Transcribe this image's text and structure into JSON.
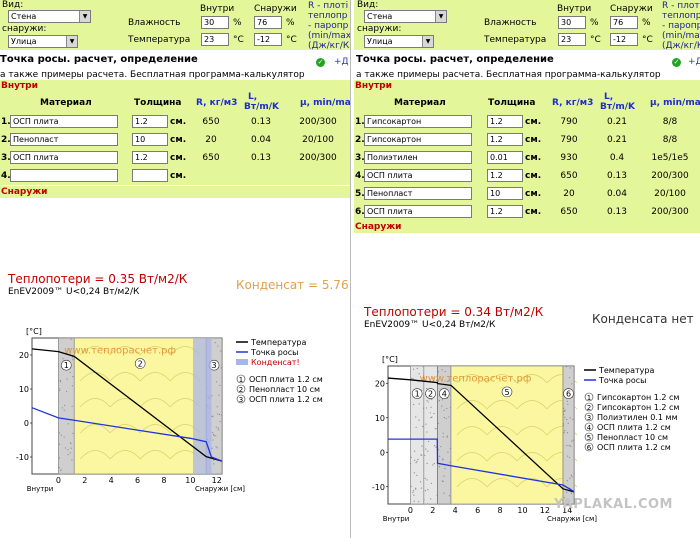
{
  "left": {
    "form": {
      "vid_label": "Вид:",
      "vid_value": "Стена",
      "outside_label": "снаружи:",
      "outside_value": "Улица",
      "inside_label": "Внутри",
      "outside_col_label": "Снаружи",
      "humidity_label": "Влажность",
      "humidity_in": "30",
      "humidity_out": "76",
      "percent": "%",
      "temp_label": "Температура",
      "temp_in": "23",
      "temp_out": "-12",
      "celsius": "°C",
      "r_note": [
        "R - плоті",
        "теплопр",
        "- паропр",
        "(min/max",
        "(Дж/кг/К"
      ]
    },
    "headline": "Точка росы. расчет, определение",
    "plus": "+Д",
    "subline": "а также примеры расчета. Бесплатная программа-калькулятор",
    "inside_bar": "Внутри",
    "outside_bar": "Снаружи",
    "table_header": {
      "material": "Материал",
      "thickness": "Толщина",
      "r": "R, кг/м3",
      "l": "L,",
      "l2": "Вт/m/K",
      "mu": "μ, min/max"
    },
    "rows": [
      {
        "num": "1.",
        "material": "ОСП плита",
        "thickness": "1.2",
        "unit": "см.",
        "r": "650",
        "l": "0.13",
        "mu": "200/300"
      },
      {
        "num": "2.",
        "material": "Пенопласт",
        "thickness": "10",
        "unit": "см.",
        "r": "20",
        "l": "0.04",
        "mu": "20/100"
      },
      {
        "num": "3.",
        "material": "ОСП плита",
        "thickness": "1.2",
        "unit": "см.",
        "r": "650",
        "l": "0.13",
        "mu": "200/300"
      },
      {
        "num": "4.",
        "material": "",
        "thickness": "",
        "unit": "см.",
        "r": "",
        "l": "",
        "mu": ""
      }
    ],
    "heat_loss": "Теплопотери = 0.35 Вт/м2/К",
    "enev": "EnEV2009™ U<0,24 Вт/м2/К",
    "condensate": "Конденсат = 5.76"
  },
  "right": {
    "form": {
      "vid_label": "Вид:",
      "vid_value": "Стена",
      "outside_label": "снаружи:",
      "outside_value": "Улица",
      "inside_label": "Внутри",
      "outside_col_label": "Снаружи",
      "humidity_label": "Влажность",
      "humidity_in": "30",
      "humidity_out": "76",
      "percent": "%",
      "temp_label": "Температура",
      "temp_in": "23",
      "temp_out": "-12",
      "celsius": "°C",
      "r_note": [
        "R - плотн",
        "теплопр",
        "- паропр",
        "(min/max",
        "(Дж/кг/К"
      ]
    },
    "headline": "Точка росы. расчет, определение",
    "plus": "+Д",
    "subline": "а также примеры расчета. Бесплатная программа-калькулятор",
    "inside_bar": "Внутри",
    "outside_bar": "Снаружи",
    "table_header": {
      "material": "Материал",
      "thickness": "Толщина",
      "r": "R, кг/м3",
      "l": "L,",
      "l2": "Вт/m/K",
      "mu": "μ, min/max"
    },
    "rows": [
      {
        "num": "1.",
        "material": "Гипсокартон",
        "thickness": "1.2",
        "unit": "см.",
        "r": "790",
        "l": "0.21",
        "mu": "8/8"
      },
      {
        "num": "2.",
        "material": "Гипсокартон",
        "thickness": "1.2",
        "unit": "см.",
        "r": "790",
        "l": "0.21",
        "mu": "8/8"
      },
      {
        "num": "3.",
        "material": "Полиэтилен",
        "thickness": "0.01",
        "unit": "см.",
        "r": "930",
        "l": "0.4",
        "mu": "1e5/1e5"
      },
      {
        "num": "4.",
        "material": "ОСП плита",
        "thickness": "1.2",
        "unit": "см.",
        "r": "650",
        "l": "0.13",
        "mu": "200/300"
      },
      {
        "num": "5.",
        "material": "Пенопласт",
        "thickness": "10",
        "unit": "см.",
        "r": "20",
        "l": "0.04",
        "mu": "20/100"
      },
      {
        "num": "6.",
        "material": "ОСП плита",
        "thickness": "1.2",
        "unit": "см.",
        "r": "650",
        "l": "0.13",
        "mu": "200/300"
      }
    ],
    "heat_loss": "Теплопотери = 0.34 Вт/м2/К",
    "enev": "EnEV2009™ U<0,24 Вт/м2/К",
    "condensate": "Конденсата нет"
  },
  "watermark": "YAPLAKAL.COM",
  "colors": {
    "temperature": "#000000",
    "dew_point": "#2233dd",
    "condensate": "#aab4e8",
    "insulation": "#fbf7a0",
    "heat_loss": "#c00000",
    "condensate_text": "#e0a050"
  },
  "chart_data": [
    {
      "type": "line",
      "title": "",
      "ylabel": "[°C]",
      "xlabel": "Снаружи [см]",
      "x_start_label": "Внутри",
      "xlim": [
        -2,
        12.4
      ],
      "ylim": [
        -15,
        25
      ],
      "x_ticks": [
        0,
        2,
        4,
        6,
        8,
        10,
        12
      ],
      "y_ticks": [
        -10,
        0,
        10,
        20
      ],
      "watermark": "www.теплорасчет.рф",
      "layers": [
        {
          "label": "1",
          "material": "osb",
          "x0": 0,
          "x1": 1.2
        },
        {
          "label": "2",
          "material": "foam",
          "x0": 1.2,
          "x1": 11.2
        },
        {
          "label": "3",
          "material": "osb",
          "x0": 11.2,
          "x1": 12.4
        }
      ],
      "condensate_zone": [
        10.2,
        11.6
      ],
      "series": [
        {
          "name": "Температура",
          "x": [
            -2,
            0,
            1.2,
            11.2,
            12.4
          ],
          "y": [
            21.8,
            21,
            19.6,
            -9.9,
            -11.2
          ]
        },
        {
          "name": "Точка росы",
          "x": [
            -2,
            0,
            1.2,
            10,
            11.2,
            11.6,
            12.4
          ],
          "y": [
            4.5,
            1.5,
            0.8,
            -4.5,
            -5.5,
            -10,
            -11.2
          ]
        }
      ],
      "legend": [
        "Температура",
        "Точка росы",
        "Конденсат!"
      ],
      "layer_legend": [
        "ОСП плита 1.2 см",
        "Пенопласт 10 см",
        "ОСП плита 1.2 см"
      ]
    },
    {
      "type": "line",
      "title": "",
      "ylabel": "[°C]",
      "xlabel": "Снаружи [см]",
      "x_start_label": "Внутри",
      "xlim": [
        -2,
        14.6
      ],
      "ylim": [
        -15,
        25
      ],
      "x_ticks": [
        0,
        2,
        4,
        6,
        8,
        10,
        12,
        14
      ],
      "y_ticks": [
        -10,
        0,
        10,
        20
      ],
      "watermark": "www.теплорасчет.рф",
      "layers": [
        {
          "label": "1",
          "material": "drywall",
          "x0": 0,
          "x1": 1.2
        },
        {
          "label": "2",
          "material": "drywall",
          "x0": 1.2,
          "x1": 2.4
        },
        {
          "label": "3",
          "material": "film",
          "x0": 2.4,
          "x1": 2.42
        },
        {
          "label": "4",
          "material": "osb",
          "x0": 2.42,
          "x1": 3.62
        },
        {
          "label": "5",
          "material": "foam",
          "x0": 3.62,
          "x1": 13.62
        },
        {
          "label": "6",
          "material": "osb",
          "x0": 13.62,
          "x1": 14.82
        }
      ],
      "condensate_zone": null,
      "series": [
        {
          "name": "Температура",
          "x": [
            -2,
            0,
            1.2,
            2.4,
            2.42,
            3.62,
            13.62,
            14.6
          ],
          "y": [
            21.5,
            21,
            20.6,
            20.2,
            19.9,
            19.4,
            -10.6,
            -11.5
          ]
        },
        {
          "name": "Точка росы",
          "x": [
            -2,
            0,
            2.4,
            2.42,
            3.62,
            13.62,
            14.6
          ],
          "y": [
            3.8,
            3.8,
            3.8,
            -3.2,
            -3.9,
            -9.5,
            -11.4
          ]
        }
      ],
      "legend": [
        "Температура",
        "Точка росы"
      ],
      "layer_legend": [
        "Гипсокартон 1.2 см",
        "Гипсокартон 1.2 см",
        "Полиэтилен 0.1 мм",
        "ОСП плита 1.2 см",
        "Пенопласт 10 см",
        "ОСП плита 1.2 см"
      ]
    }
  ]
}
